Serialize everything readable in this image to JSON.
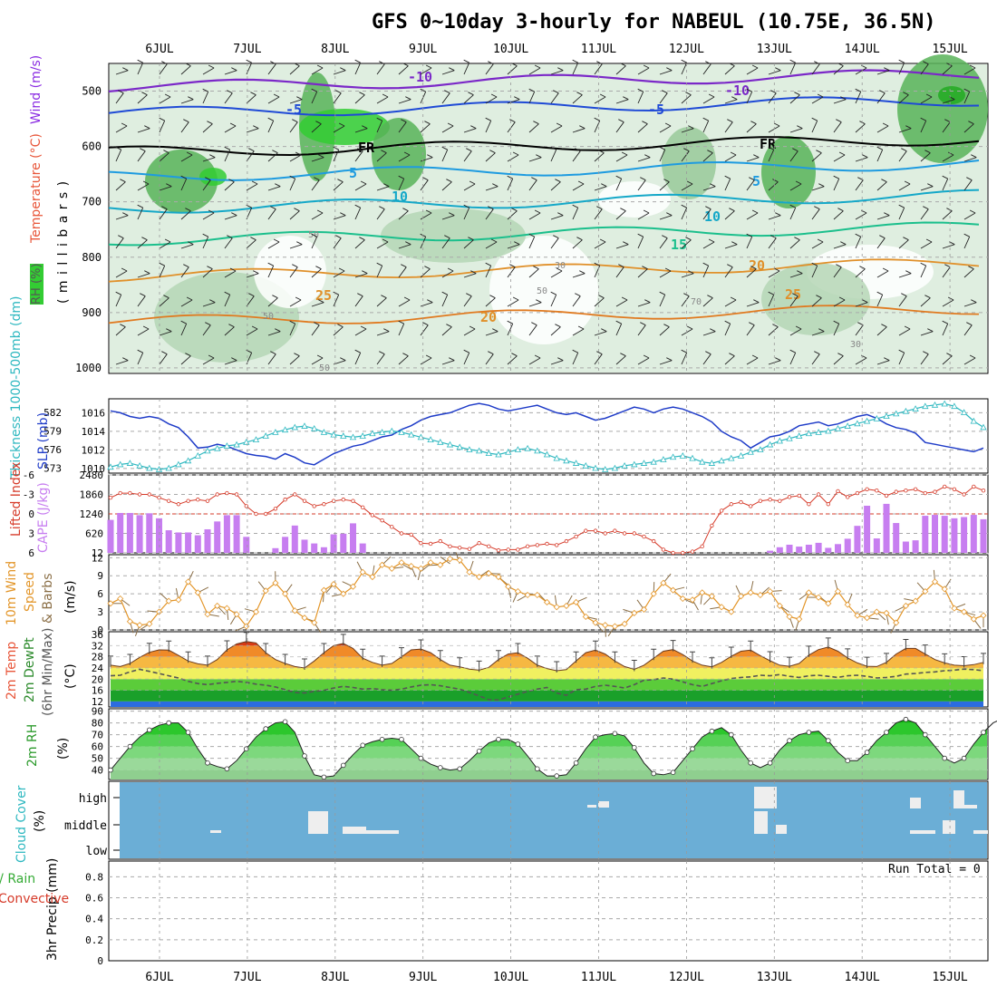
{
  "title": "GFS 0~10day 3-hourly for NABEUL (10.75E, 36.5N)",
  "dates": [
    "6JUL",
    "7JUL",
    "8JUL",
    "9JUL",
    "10JUL",
    "11JUL",
    "12JUL",
    "13JUL",
    "14JUL",
    "15JUL"
  ],
  "upper": {
    "axis_label": "( m i l l i b a r s )",
    "y_ticks": [
      500,
      600,
      700,
      800,
      900,
      1000
    ],
    "legend": {
      "wind": "Wind (m/s)",
      "temperature": "Temperature (°C)",
      "rh": "RH (%)"
    },
    "colors": {
      "wind": "#8a2be2",
      "temperature": "#e8563a",
      "rh_bg": "#33cc33"
    },
    "isotherm_labels": [
      "-10",
      "-10",
      "-5",
      "-5",
      "FR",
      "FR",
      "5",
      "5",
      "10",
      "10",
      "15",
      "20",
      "25",
      "25",
      "20"
    ],
    "rh_labels": [
      "50",
      "30",
      "50",
      "70",
      "50",
      "30",
      "50"
    ]
  },
  "slp_panel": {
    "left_label": "Thickness 1000-500mb (dm)",
    "right_label": "SLP (mb)",
    "thickness_ticks": [
      573,
      576,
      579,
      582
    ],
    "slp_ticks": [
      1010,
      1012,
      1014,
      1016
    ],
    "colors": {
      "slp": "#1f3cc8",
      "thickness": "#2eb8c0"
    }
  },
  "cape_panel": {
    "li_label": "Lifted Index",
    "cape_label": "CAPE (J/kg)",
    "li_ticks": [
      "-6",
      "-3",
      "0",
      "3",
      "6"
    ],
    "cape_ticks": [
      "12",
      "620",
      "1240",
      "1860",
      "2480"
    ],
    "colors": {
      "cape": "#c77ef0",
      "li": "#d63b2a"
    }
  },
  "wind_panel": {
    "label": [
      "10m Wind",
      "Speed",
      "& Barbs"
    ],
    "unit": "(m/s)",
    "ticks": [
      0,
      3,
      6,
      9,
      12
    ],
    "colors": {
      "speed": "#e3962a",
      "barbs": "#8b6f47"
    }
  },
  "temp_panel": {
    "label": [
      "2m Temp",
      "2m DewPt",
      "(6hr Min/Max)"
    ],
    "unit": "(°C)",
    "ticks": [
      12,
      16,
      20,
      24,
      28,
      32,
      36
    ]
  },
  "rh_panel": {
    "label": "2m RH",
    "unit": "(%)",
    "ticks": [
      40,
      50,
      60,
      70,
      80,
      90
    ]
  },
  "cloud_panel": {
    "label": "Cloud Cover",
    "unit": "(%)",
    "levels": [
      "high",
      "middle",
      "low"
    ],
    "colors": {
      "bg": "#6baed6",
      "cloud": "#eeeeee"
    }
  },
  "precip_panel": {
    "label": "3hr Precip (mm)",
    "legend_total": "Total / Rain",
    "legend_conv": "Convective",
    "run_total": "Run Total = 0",
    "ticks": [
      "0",
      "0.2",
      "0.4",
      "0.6",
      "0.8"
    ]
  },
  "chart_data": [
    {
      "type": "line",
      "title": "SLP (mb) / Thickness 1000-500mb (dm)",
      "x_start": "5JUL 12Z",
      "x_step_hours": 3,
      "series": [
        {
          "name": "SLP (mb)",
          "values": [
            1016.2,
            1016.0,
            1015.6,
            1015.4,
            1015.6,
            1015.4,
            1014.8,
            1014.4,
            1013.4,
            1012.2,
            1012.3,
            1012.6,
            1012.4,
            1012.0,
            1011.6,
            1011.4,
            1011.3,
            1011.0,
            1011.6,
            1011.2,
            1010.6,
            1010.4,
            1011.0,
            1011.6,
            1012.0,
            1012.4,
            1012.6,
            1013.0,
            1013.4,
            1013.6,
            1014.2,
            1014.6,
            1015.2,
            1015.6,
            1015.8,
            1016.0,
            1016.4,
            1016.8,
            1017.0,
            1016.8,
            1016.4,
            1016.2,
            1016.4,
            1016.6,
            1016.8,
            1016.4,
            1016.0,
            1015.8,
            1016.0,
            1015.6,
            1015.2,
            1015.4,
            1015.8,
            1016.2,
            1016.6,
            1016.4,
            1016.0,
            1016.4,
            1016.6,
            1016.4,
            1016.0,
            1015.6,
            1015.0,
            1014.0,
            1013.4,
            1013.0,
            1012.2,
            1012.8,
            1013.4,
            1013.6,
            1014.0,
            1014.6,
            1014.8,
            1015.0,
            1014.6,
            1014.8,
            1015.2,
            1015.6,
            1015.8,
            1015.4,
            1014.8,
            1014.4,
            1014.2,
            1013.8,
            1012.8,
            1012.6,
            1012.4,
            1012.2,
            1012.0,
            1011.8,
            1012.2
          ]
        },
        {
          "name": "Thickness 1000-500mb (dm)",
          "values": [
            573.2,
            573.6,
            573.8,
            573.4,
            573.0,
            572.8,
            573.0,
            573.6,
            574.2,
            575.0,
            575.8,
            576.2,
            576.6,
            576.8,
            577.2,
            577.6,
            578.2,
            578.8,
            579.2,
            579.6,
            579.8,
            579.4,
            578.8,
            578.4,
            578.2,
            578.0,
            578.2,
            578.6,
            578.8,
            579.0,
            578.8,
            578.4,
            578.0,
            577.6,
            577.2,
            576.8,
            576.4,
            576.0,
            575.8,
            575.4,
            575.2,
            575.6,
            576.0,
            576.2,
            575.8,
            575.2,
            574.6,
            574.2,
            573.8,
            573.4,
            573.0,
            572.8,
            573.0,
            573.4,
            573.6,
            573.8,
            574.0,
            574.4,
            574.8,
            575.0,
            574.6,
            574.0,
            573.8,
            574.2,
            574.6,
            575.0,
            575.6,
            576.0,
            576.8,
            577.4,
            577.8,
            578.2,
            578.6,
            578.8,
            579.0,
            579.4,
            579.8,
            580.2,
            580.6,
            581.0,
            581.4,
            581.8,
            582.2,
            582.6,
            583.0,
            583.2,
            583.4,
            583.0,
            582.0,
            580.6,
            579.6
          ]
        }
      ]
    },
    {
      "type": "bar",
      "title": "CAPE (J/kg) / Lifted Index",
      "series": [
        {
          "name": "CAPE (J/kg)",
          "values": [
            1050,
            1270,
            1270,
            1200,
            1260,
            1100,
            720,
            650,
            650,
            560,
            750,
            1000,
            1200,
            1200,
            510,
            0,
            0,
            150,
            510,
            870,
            420,
            300,
            180,
            590,
            610,
            940,
            300,
            0,
            0,
            0,
            0,
            0,
            0,
            0,
            0,
            0,
            0,
            0,
            0,
            0,
            0,
            0,
            0,
            0,
            0,
            0,
            0,
            0,
            0,
            0,
            0,
            0,
            0,
            0,
            0,
            0,
            0,
            0,
            0,
            0,
            0,
            0,
            0,
            0,
            0,
            0,
            0,
            0,
            70,
            180,
            260,
            200,
            260,
            320,
            160,
            280,
            450,
            860,
            1500,
            460,
            1560,
            950,
            360,
            400,
            1180,
            1210,
            1180,
            1100,
            1140,
            1210,
            1070
          ]
        },
        {
          "name": "Lifted Index",
          "values": [
            -2.5,
            -3.2,
            -3.2,
            -3.0,
            -3.0,
            -2.5,
            -2.0,
            -1.5,
            -2.0,
            -2.2,
            -2.0,
            -3.0,
            -3.2,
            -3.0,
            -1.2,
            0.0,
            0.0,
            -0.8,
            -2.2,
            -3.0,
            -2.0,
            -1.2,
            -1.5,
            -2.0,
            -2.2,
            -2.0,
            -1.0,
            0.2,
            1.0,
            2.0,
            3.0,
            3.2,
            4.5,
            4.6,
            4.2,
            5.0,
            5.2,
            5.4,
            4.5,
            5.0,
            5.6,
            5.5,
            5.5,
            5.0,
            4.8,
            4.6,
            4.8,
            4.2,
            3.5,
            2.6,
            2.6,
            3.0,
            2.6,
            3.0,
            3.0,
            3.5,
            4.2,
            5.5,
            6.0,
            6.0,
            5.8,
            5.0,
            1.8,
            -0.5,
            -1.5,
            -1.8,
            -1.2,
            -2.0,
            -2.2,
            -2.0,
            -2.6,
            -2.8,
            -1.5,
            -3.0,
            -1.5,
            -3.5,
            -2.6,
            -3.2,
            -3.8,
            -3.6,
            -2.8,
            -3.4,
            -3.6,
            -3.8,
            -3.2,
            -3.4,
            -4.2,
            -3.8,
            -3.0,
            -4.2,
            -3.6
          ]
        }
      ]
    },
    {
      "type": "line",
      "title": "10m Wind Speed (m/s)",
      "series": [
        {
          "name": "10m Wind Speed",
          "values": [
            4.4,
            5.2,
            1.4,
            0.8,
            1.0,
            3.0,
            4.8,
            5.0,
            8.0,
            6.2,
            2.6,
            4.0,
            3.6,
            2.6,
            0.6,
            3.0,
            6.5,
            7.8,
            6.0,
            3.2,
            2.0,
            1.2,
            6.6,
            7.6,
            6.0,
            7.2,
            9.6,
            8.8,
            10.8,
            10.2,
            11.2,
            10.6,
            10.2,
            11.2,
            10.8,
            11.8,
            11.6,
            9.6,
            8.8,
            9.4,
            8.8,
            7.2,
            6.4,
            5.8,
            5.8,
            4.6,
            3.8,
            4.0,
            4.6,
            2.2,
            1.2,
            0.8,
            0.6,
            1.0,
            2.8,
            3.4,
            6.0,
            7.8,
            6.6,
            5.2,
            5.0,
            6.2,
            5.6,
            3.8,
            3.0,
            5.6,
            6.2,
            5.8,
            6.4,
            4.0,
            2.2,
            1.8,
            6.2,
            5.4,
            4.4,
            6.4,
            4.2,
            2.4,
            2.0,
            3.0,
            2.8,
            1.2,
            4.0,
            4.8,
            6.4,
            8.0,
            6.8,
            3.6,
            3.0,
            1.8,
            2.4
          ]
        }
      ]
    },
    {
      "type": "area",
      "title": "2m Temp / 2m DewPt (°C)",
      "series": [
        {
          "name": "2m Temp",
          "values": [
            25.0,
            24.5,
            25.6,
            27.8,
            29.6,
            30.5,
            30.4,
            28.5,
            26.5,
            25.5,
            25.0,
            27.0,
            30.5,
            32.6,
            33.5,
            33.0,
            29.5,
            27.0,
            25.6,
            24.5,
            24.0,
            26.5,
            29.5,
            32.0,
            32.8,
            31.0,
            27.5,
            26.0,
            25.0,
            25.6,
            28.0,
            30.5,
            30.8,
            29.5,
            27.0,
            25.0,
            24.4,
            23.6,
            23.2,
            24.2,
            27.0,
            29.0,
            29.5,
            27.5,
            25.0,
            23.8,
            23.0,
            23.4,
            26.5,
            29.5,
            30.4,
            29.0,
            26.5,
            24.5,
            23.5,
            25.0,
            27.5,
            30.0,
            30.6,
            28.8,
            26.5,
            25.0,
            24.4,
            26.0,
            28.2,
            30.0,
            30.4,
            28.4,
            26.6,
            25.0,
            24.6,
            25.6,
            28.6,
            30.6,
            31.5,
            30.0,
            27.6,
            25.8,
            24.6,
            24.5,
            26.0,
            29.0,
            31.0,
            31.0,
            29.0,
            27.0,
            25.8,
            25.0,
            24.8,
            25.2,
            26.0
          ]
        },
        {
          "name": "2m DewPt",
          "values": [
            21.2,
            21.4,
            22.6,
            23.5,
            22.8,
            22.0,
            21.2,
            20.4,
            19.2,
            18.4,
            18.0,
            18.5,
            18.8,
            19.2,
            18.8,
            18.2,
            17.8,
            17.2,
            16.2,
            15.2,
            15.0,
            15.6,
            16.0,
            16.8,
            17.4,
            17.0,
            16.4,
            16.6,
            16.2,
            16.0,
            16.4,
            17.2,
            17.8,
            18.0,
            17.6,
            17.0,
            16.4,
            15.2,
            14.0,
            12.6,
            12.5,
            13.6,
            14.6,
            15.6,
            16.4,
            17.0,
            15.0,
            14.2,
            16.2,
            16.4,
            17.4,
            17.8,
            17.4,
            16.8,
            18.0,
            19.6,
            19.8,
            20.4,
            20.0,
            19.0,
            18.0,
            17.4,
            18.4,
            19.4,
            20.2,
            20.6,
            20.8,
            21.4,
            21.2,
            21.6,
            21.0,
            20.6,
            21.2,
            21.4,
            21.0,
            20.6,
            21.2,
            21.4,
            21.0,
            20.4,
            20.6,
            21.0,
            21.8,
            22.0,
            22.4,
            22.6,
            23.0,
            23.2,
            23.6,
            23.4,
            23.0
          ]
        }
      ]
    },
    {
      "type": "area",
      "title": "2m RH (%)",
      "series": [
        {
          "name": "2m RH",
          "values": [
            40,
            50,
            60,
            68,
            74,
            78,
            80,
            80,
            72,
            58,
            46,
            43,
            41,
            48,
            58,
            68,
            75,
            80,
            81,
            72,
            52,
            36,
            34,
            35,
            44,
            53,
            61,
            64,
            66,
            67,
            66,
            58,
            50,
            45,
            42,
            40,
            41,
            48,
            56,
            63,
            66,
            66,
            62,
            52,
            41,
            35,
            35,
            36,
            46,
            58,
            68,
            70,
            71,
            69,
            59,
            46,
            37,
            36,
            38,
            48,
            58,
            68,
            73,
            76,
            70,
            57,
            46,
            42,
            46,
            57,
            65,
            70,
            72,
            73,
            65,
            55,
            48,
            48,
            55,
            65,
            72,
            80,
            83,
            80,
            70,
            60,
            50,
            46,
            50,
            62,
            72,
            80,
            84,
            86,
            80,
            72
          ]
        }
      ]
    },
    {
      "type": "bar",
      "title": "3hr Precip (mm)",
      "series": [
        {
          "name": "Total / Rain",
          "values": [
            0,
            0,
            0,
            0,
            0,
            0,
            0,
            0,
            0,
            0,
            0,
            0,
            0,
            0,
            0,
            0,
            0,
            0,
            0,
            0,
            0,
            0,
            0,
            0,
            0,
            0,
            0,
            0,
            0,
            0,
            0,
            0,
            0,
            0,
            0,
            0,
            0,
            0,
            0,
            0,
            0,
            0,
            0,
            0,
            0,
            0,
            0,
            0,
            0,
            0,
            0,
            0,
            0,
            0,
            0,
            0,
            0,
            0,
            0,
            0,
            0,
            0,
            0,
            0,
            0,
            0,
            0,
            0,
            0,
            0,
            0,
            0,
            0,
            0,
            0,
            0,
            0,
            0,
            0,
            0,
            0,
            0,
            0,
            0,
            0,
            0,
            0,
            0,
            0,
            0,
            0
          ]
        }
      ]
    }
  ]
}
